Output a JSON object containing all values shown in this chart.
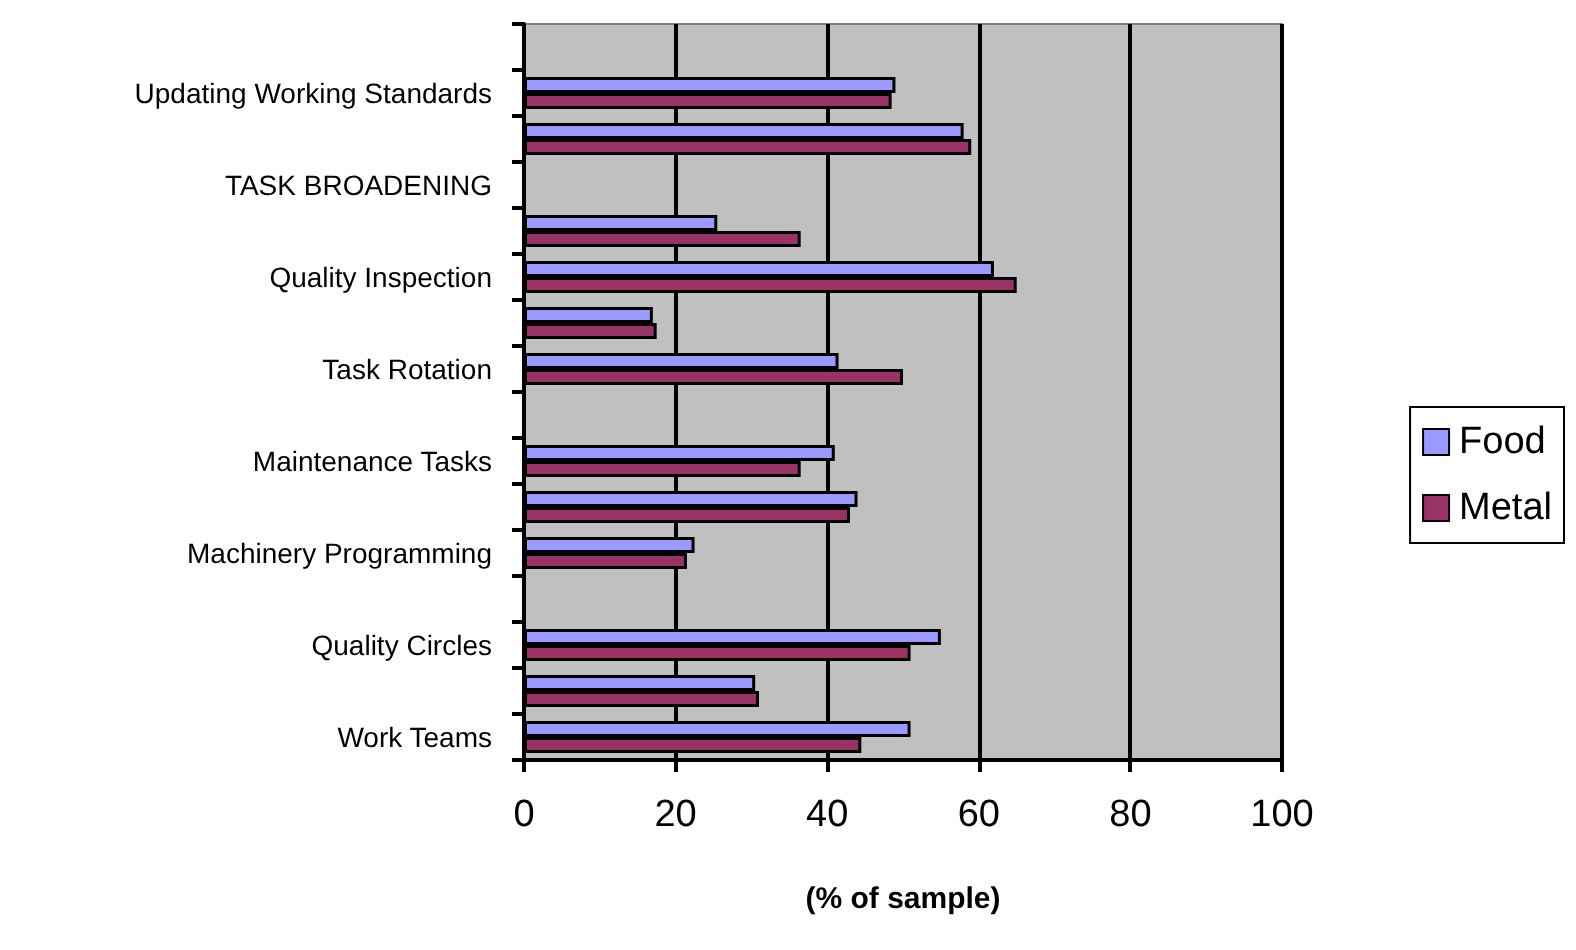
{
  "chart_data": {
    "type": "bar",
    "orientation": "horizontal",
    "xlabel": "(% of sample)",
    "categories": [
      null,
      "Updating Working Standards",
      null,
      "TASK BROADENING",
      null,
      "Quality Inspection",
      null,
      "Task Rotation",
      null,
      "Maintenance Tasks",
      null,
      "Machinery Programming",
      null,
      "Quality Circles",
      null,
      "Work Teams"
    ],
    "series": [
      {
        "name": "Food",
        "color": "#9999ff",
        "values": [
          null,
          49,
          58,
          null,
          25.5,
          62,
          17,
          41.5,
          null,
          41,
          44,
          22.5,
          null,
          55,
          30.5,
          51
        ]
      },
      {
        "name": "Metal",
        "color": "#993366",
        "values": [
          null,
          48.5,
          59,
          null,
          36.5,
          65,
          17.5,
          50,
          null,
          36.5,
          43,
          21.5,
          null,
          51,
          31,
          44.5
        ]
      }
    ],
    "xlim": [
      0,
      100
    ],
    "xticks": [
      0,
      20,
      40,
      60,
      80,
      100
    ],
    "grid": "x",
    "legend": "right"
  }
}
